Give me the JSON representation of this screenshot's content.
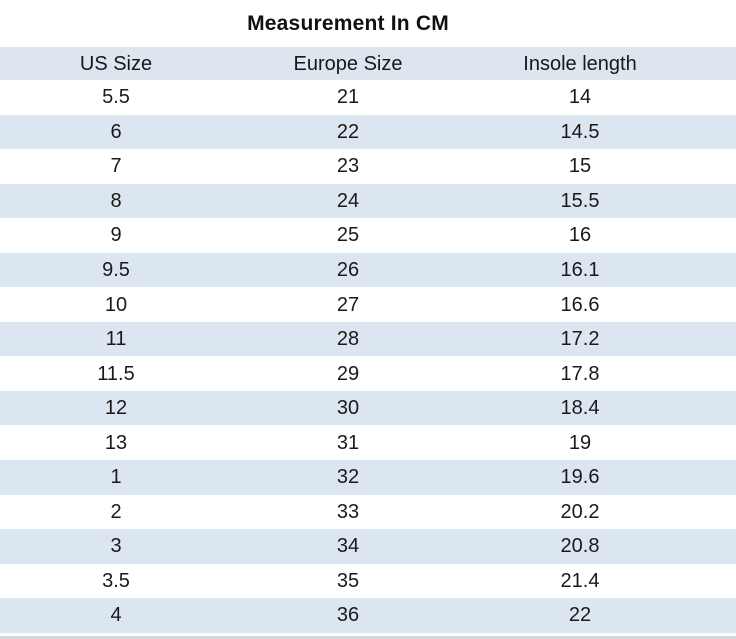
{
  "title": "Measurement In CM",
  "table": {
    "columns": [
      "US Size",
      "Europe Size",
      "Insole length"
    ],
    "rows": [
      [
        "5.5",
        "21",
        "14"
      ],
      [
        "6",
        "22",
        "14.5"
      ],
      [
        "7",
        "23",
        "15"
      ],
      [
        "8",
        "24",
        "15.5"
      ],
      [
        "9",
        "25",
        "16"
      ],
      [
        "9.5",
        "26",
        "16.1"
      ],
      [
        "10",
        "27",
        "16.6"
      ],
      [
        "11",
        "28",
        "17.2"
      ],
      [
        "11.5",
        "29",
        "17.8"
      ],
      [
        "12",
        "30",
        "18.4"
      ],
      [
        "13",
        "31",
        "19"
      ],
      [
        "1",
        "32",
        "19.6"
      ],
      [
        "2",
        "33",
        "20.2"
      ],
      [
        "3",
        "34",
        "20.8"
      ],
      [
        "3.5",
        "35",
        "21.4"
      ],
      [
        "4",
        "36",
        "22"
      ]
    ]
  },
  "colors": {
    "header_bg": "#dde5ee",
    "row_alt_bg": "#dce6f1",
    "text": "#1a1a1a",
    "bottom_strip": "#d4d8dd"
  }
}
